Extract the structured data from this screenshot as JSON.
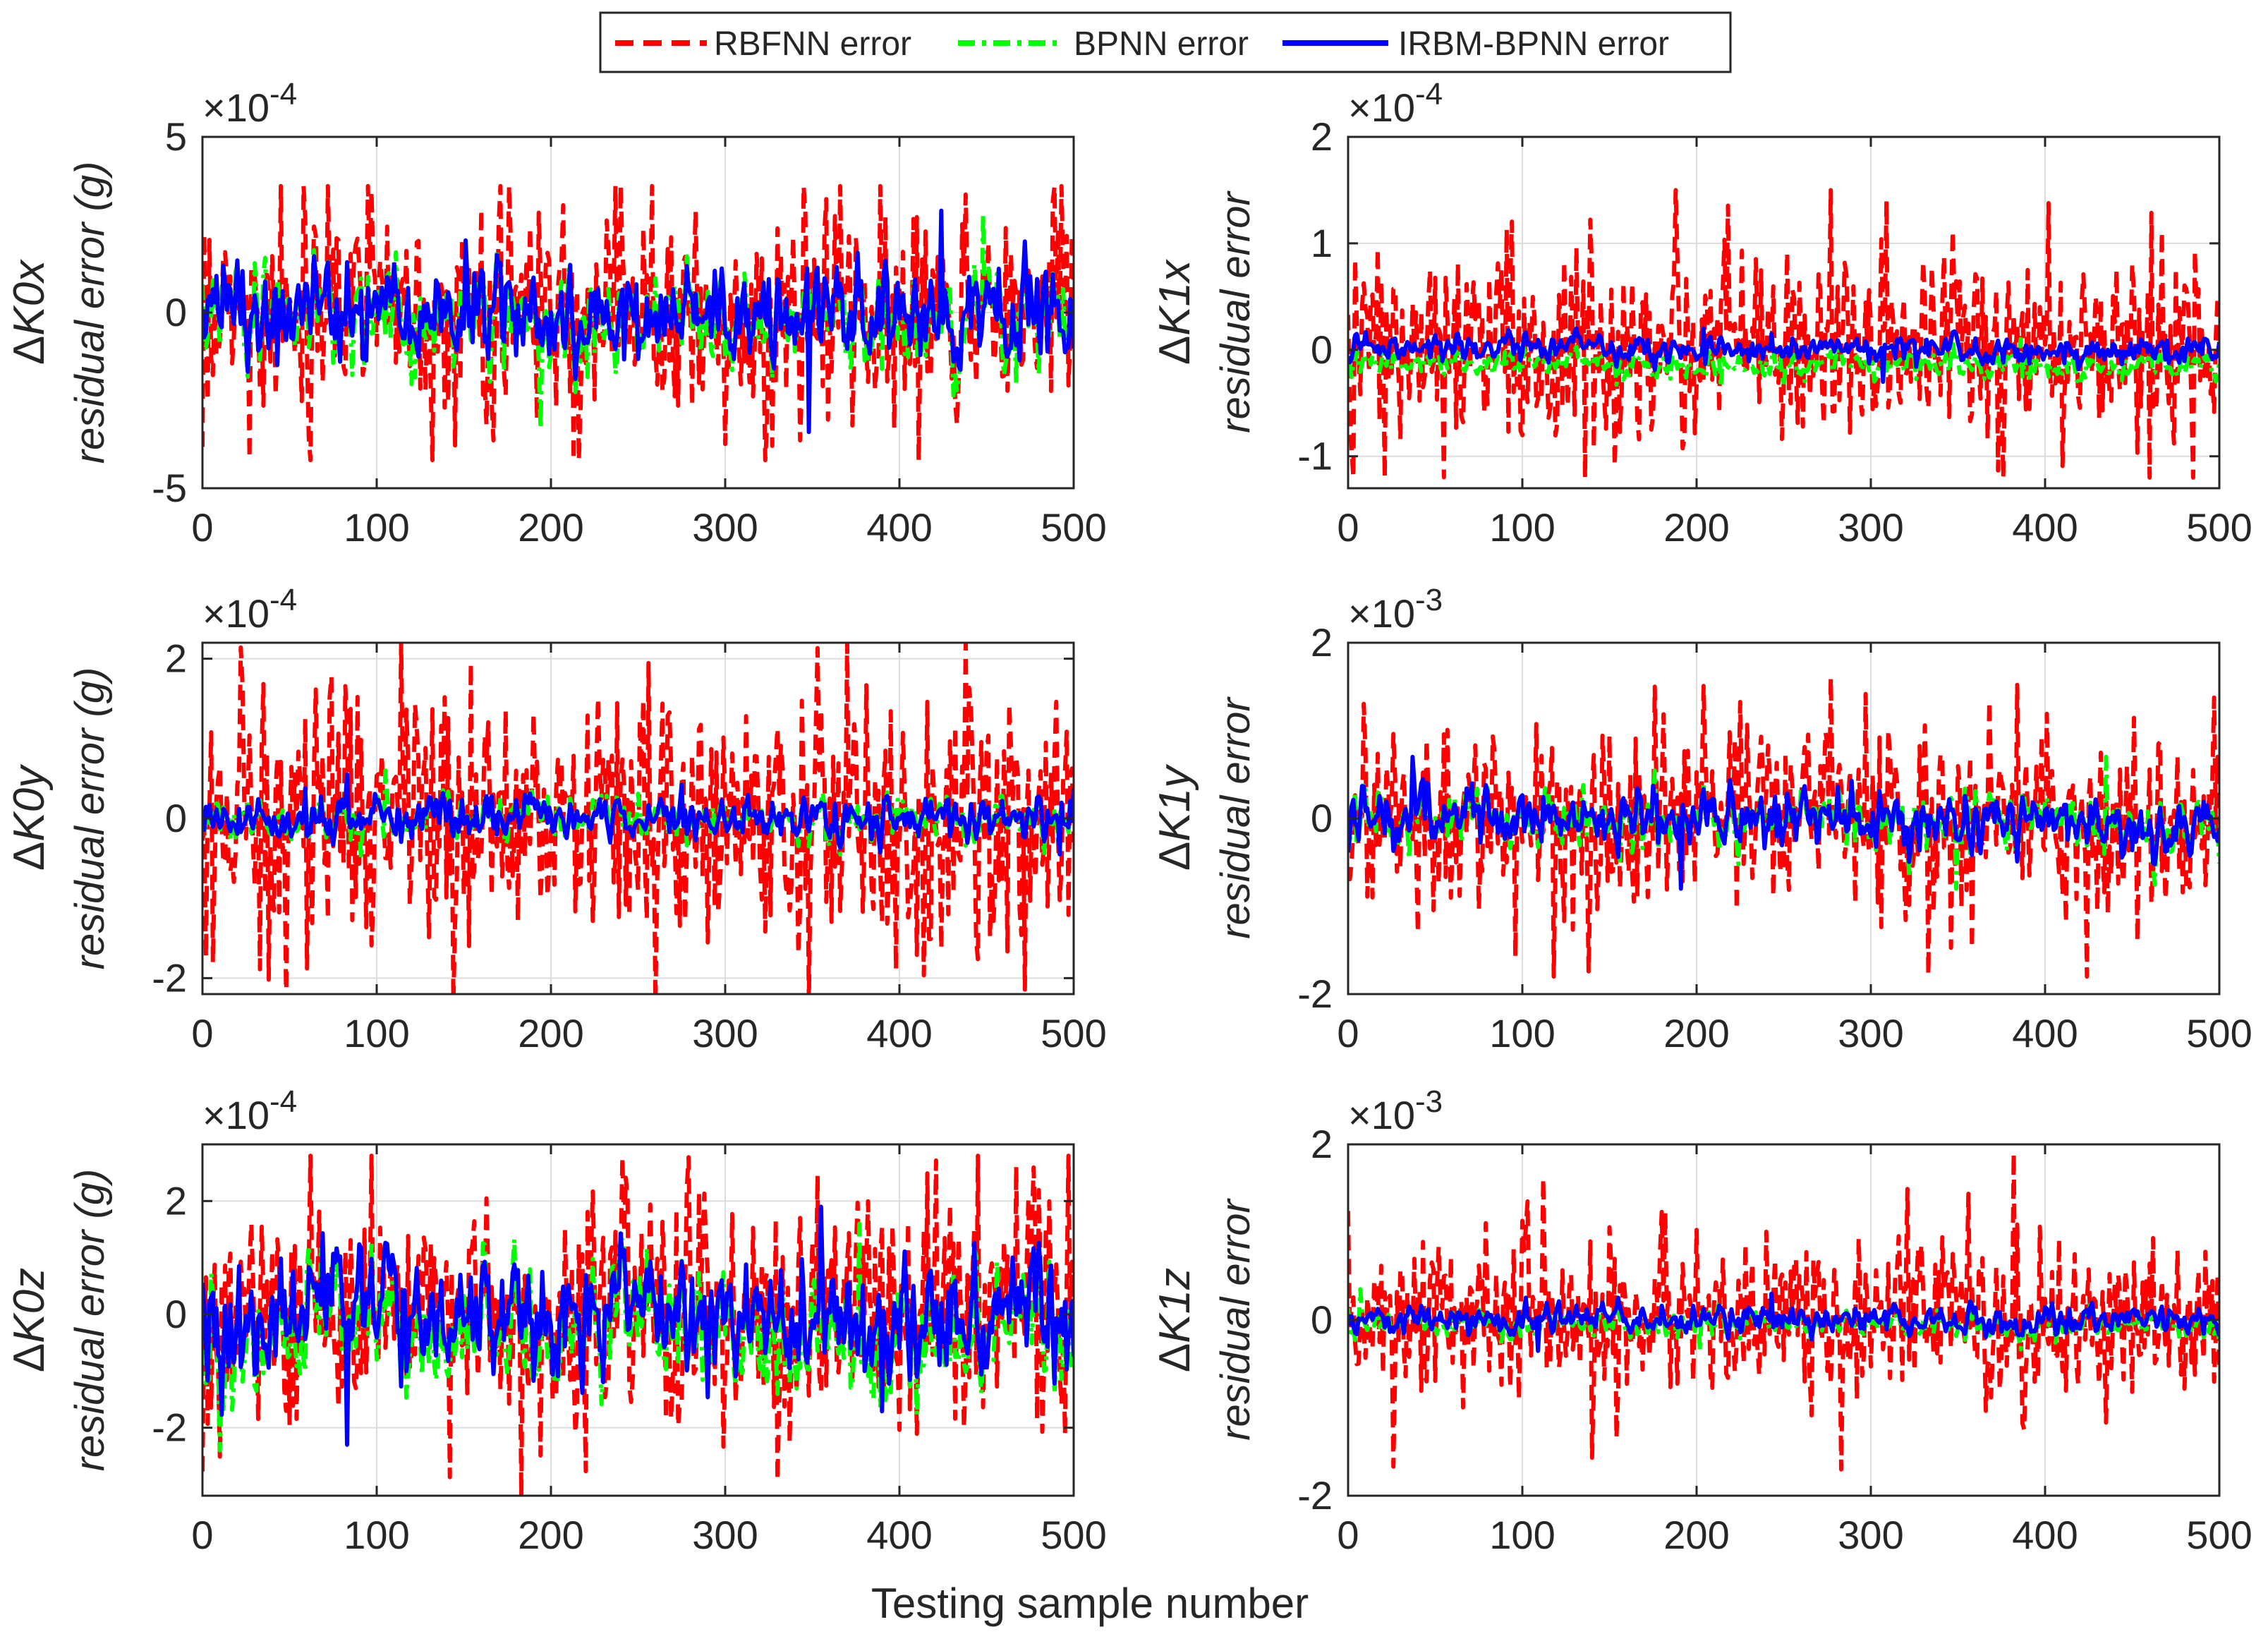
{
  "legend": {
    "items": [
      {
        "label": "RBFNN error",
        "color": "#ff0000",
        "style": "dashed"
      },
      {
        "label": "BPNN error",
        "color": "#00ff00",
        "style": "dashdot"
      },
      {
        "label": "IRBM-BPNN error",
        "color": "#0000ff",
        "style": "solid"
      }
    ]
  },
  "common": {
    "xlabel": "Testing sample number",
    "xlim": [
      0,
      500
    ],
    "xticks": [
      0,
      100,
      200,
      300,
      400,
      500
    ],
    "n_samples": 500,
    "delta_symbol": "Δ",
    "times_symbol": "×10"
  },
  "chart_data": [
    {
      "type": "line",
      "id": "k0x",
      "param": "K0x",
      "ylabel": "residual error (g)",
      "exponent": "-4",
      "ylim": [
        -5,
        5
      ],
      "yticks": [
        -5,
        0,
        5
      ],
      "xlim": [
        0,
        500
      ],
      "grid": true,
      "series": [
        {
          "name": "RBFNN error",
          "amplitude": 1.3,
          "bias": 0.0,
          "peak_max": 3.6,
          "peak_min": -4.2
        },
        {
          "name": "BPNN error",
          "amplitude": 1.0,
          "bias": -0.1,
          "peak_max": 2.8,
          "peak_min": -3.3
        },
        {
          "name": "IRBM-BPNN error",
          "amplitude": 0.95,
          "bias": 0.0,
          "peak_max": 2.9,
          "peak_min": -3.4
        }
      ]
    },
    {
      "type": "line",
      "id": "k1x",
      "param": "K1x",
      "ylabel": "residual error",
      "exponent": "-4",
      "ylim": [
        -1.3,
        2
      ],
      "yticks": [
        -1,
        0,
        1,
        2
      ],
      "xlim": [
        0,
        500
      ],
      "grid": true,
      "series": [
        {
          "name": "RBFNN error",
          "amplitude": 0.4,
          "bias": 0.0,
          "peak_max": 1.5,
          "peak_min": -1.2
        },
        {
          "name": "BPNN error",
          "amplitude": 0.08,
          "bias": -0.15,
          "peak_max": 0.1,
          "peak_min": -0.35
        },
        {
          "name": "IRBM-BPNN error",
          "amplitude": 0.08,
          "bias": 0.0,
          "peak_max": 0.2,
          "peak_min": -0.3
        }
      ]
    },
    {
      "type": "line",
      "id": "k0y",
      "param": "K0y",
      "ylabel": "residual error (g)",
      "exponent": "-4",
      "ylim": [
        -2.2,
        2.2
      ],
      "yticks": [
        -2,
        0,
        2
      ],
      "xlim": [
        0,
        500
      ],
      "grid": true,
      "series": [
        {
          "name": "RBFNN error",
          "amplitude": 0.65,
          "bias": 0.0,
          "peak_max": 2.2,
          "peak_min": -2.3
        },
        {
          "name": "BPNN error",
          "amplitude": 0.18,
          "bias": 0.0,
          "peak_max": 0.6,
          "peak_min": -0.5
        },
        {
          "name": "IRBM-BPNN error",
          "amplitude": 0.17,
          "bias": 0.0,
          "peak_max": 0.55,
          "peak_min": -0.45
        }
      ]
    },
    {
      "type": "line",
      "id": "k1y",
      "param": "K1y",
      "ylabel": "residual error",
      "exponent": "-3",
      "ylim": [
        -2,
        2
      ],
      "yticks": [
        -2,
        0,
        2
      ],
      "xlim": [
        0,
        500
      ],
      "grid": true,
      "series": [
        {
          "name": "RBFNN error",
          "amplitude": 0.45,
          "bias": 0.0,
          "peak_max": 1.6,
          "peak_min": -1.8
        },
        {
          "name": "BPNN error",
          "amplitude": 0.22,
          "bias": 0.0,
          "peak_max": 0.7,
          "peak_min": -0.8
        },
        {
          "name": "IRBM-BPNN error",
          "amplitude": 0.21,
          "bias": 0.0,
          "peak_max": 0.7,
          "peak_min": -0.8
        }
      ]
    },
    {
      "type": "line",
      "id": "k0z",
      "param": "K0z",
      "ylabel": "residual error (g)",
      "exponent": "-4",
      "ylim": [
        -3.2,
        3
      ],
      "yticks": [
        -2,
        0,
        2
      ],
      "xlim": [
        0,
        500
      ],
      "grid": true,
      "series": [
        {
          "name": "RBFNN error",
          "amplitude": 0.85,
          "bias": 0.0,
          "peak_max": 2.8,
          "peak_min": -3.2
        },
        {
          "name": "BPNN error",
          "amplitude": 0.75,
          "bias": -0.3,
          "peak_max": 1.6,
          "peak_min": -2.4
        },
        {
          "name": "IRBM-BPNN error",
          "amplitude": 0.7,
          "bias": 0.0,
          "peak_max": 1.9,
          "peak_min": -2.3
        }
      ]
    },
    {
      "type": "line",
      "id": "k1z",
      "param": "K1z",
      "ylabel": "residual error",
      "exponent": "-3",
      "ylim": [
        -2,
        2
      ],
      "yticks": [
        -2,
        0,
        2
      ],
      "xlim": [
        0,
        500
      ],
      "grid": true,
      "series": [
        {
          "name": "RBFNN error",
          "amplitude": 0.4,
          "bias": 0.0,
          "peak_max": 1.9,
          "peak_min": -1.7
        },
        {
          "name": "BPNN error",
          "amplitude": 0.1,
          "bias": -0.05,
          "peak_max": 0.35,
          "peak_min": -0.35
        },
        {
          "name": "IRBM-BPNN error",
          "amplitude": 0.1,
          "bias": 0.0,
          "peak_max": 0.3,
          "peak_min": -0.35
        }
      ]
    }
  ]
}
